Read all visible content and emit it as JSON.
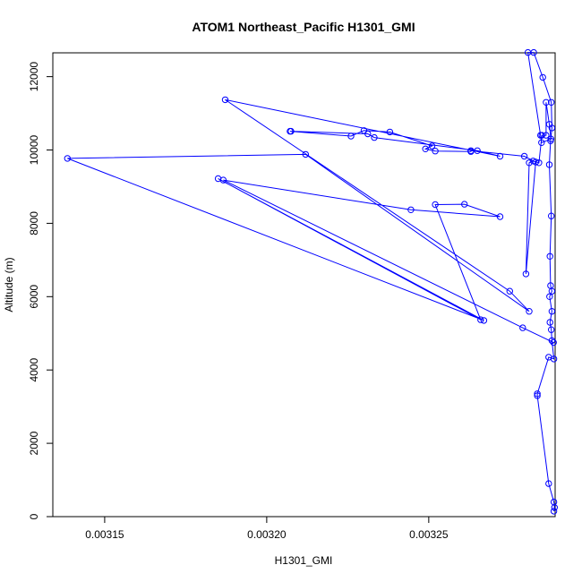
{
  "chart_data": {
    "type": "line",
    "title": "ATOM1 Northeast_Pacific H1301_GMI",
    "xlabel": "H1301_GMI",
    "ylabel": "Altitude (m)",
    "xlim": [
      0.003134,
      0.003289
    ],
    "ylim": [
      0,
      12650
    ],
    "x_ticks": [
      0.00315,
      0.0032,
      0.00325
    ],
    "x_tick_labels": [
      "0.00315",
      "0.00320",
      "0.00325"
    ],
    "y_ticks": [
      0,
      2000,
      4000,
      6000,
      8000,
      10000,
      12000
    ],
    "y_tick_labels": [
      "0",
      "2000",
      "4000",
      "6000",
      "8000",
      "10000",
      "12000"
    ],
    "grid": false,
    "series": [
      {
        "color": "#0000ff",
        "marker": "open-circle",
        "points": [
          [
            0.0032886,
            150
          ],
          [
            0.0032888,
            250
          ],
          [
            0.0032886,
            400
          ],
          [
            0.003287,
            900
          ],
          [
            0.0032835,
            3300
          ],
          [
            0.0032835,
            3350
          ],
          [
            0.003287,
            4350
          ],
          [
            0.0032886,
            4300
          ],
          [
            0.003288,
            4800
          ],
          [
            0.0032878,
            5100
          ],
          [
            0.0032874,
            5300
          ],
          [
            0.003288,
            5600
          ],
          [
            0.0032873,
            6000
          ],
          [
            0.003288,
            6150
          ],
          [
            0.0032876,
            6300
          ],
          [
            0.0032874,
            7100
          ],
          [
            0.0032878,
            8200
          ],
          [
            0.0032872,
            9600
          ],
          [
            0.0032876,
            10250
          ],
          [
            0.003288,
            10600
          ],
          [
            0.0032878,
            11300
          ],
          [
            0.0032852,
            11980
          ],
          [
            0.0032824,
            12660
          ],
          [
            0.0032806,
            12660
          ],
          [
            0.0032845,
            10400
          ],
          [
            0.0032848,
            10200
          ],
          [
            0.0032877,
            10300
          ],
          [
            0.0032872,
            10700
          ],
          [
            0.0032862,
            11300
          ],
          [
            0.0032862,
            10400
          ],
          [
            0.0032849,
            10400
          ],
          [
            0.003284,
            9650
          ],
          [
            0.0032822,
            9700
          ],
          [
            0.003281,
            9650
          ],
          [
            0.00328,
            6620
          ],
          [
            0.003283,
            9670
          ],
          [
            0.0032795,
            9830
          ],
          [
            0.003263,
            9980
          ],
          [
            0.003263,
            9960
          ],
          [
            0.003252,
            9970
          ],
          [
            0.003249,
            10030
          ],
          [
            0.003251,
            10110
          ],
          [
            0.003238,
            10490
          ],
          [
            0.00323,
            10530
          ],
          [
            0.003226,
            10380
          ],
          [
            0.0032072,
            10510
          ],
          [
            0.0032075,
            10510
          ],
          [
            0.0032312,
            10440
          ],
          [
            0.0032332,
            10340
          ],
          [
            0.003265,
            9980
          ],
          [
            0.003272,
            9830
          ],
          [
            0.0031872,
            11370
          ],
          [
            0.003275,
            6150
          ],
          [
            0.003281,
            5600
          ],
          [
            0.003212,
            9880
          ],
          [
            0.0031385,
            9770
          ],
          [
            0.003267,
            5350
          ],
          [
            0.003185,
            9220
          ],
          [
            0.003266,
            5370
          ],
          [
            0.003252,
            8510
          ],
          [
            0.003261,
            8520
          ],
          [
            0.003272,
            8180
          ],
          [
            0.0032445,
            8370
          ],
          [
            0.0031866,
            9180
          ],
          [
            0.003279,
            5150
          ],
          [
            0.0032885,
            4750
          ]
        ]
      }
    ]
  }
}
